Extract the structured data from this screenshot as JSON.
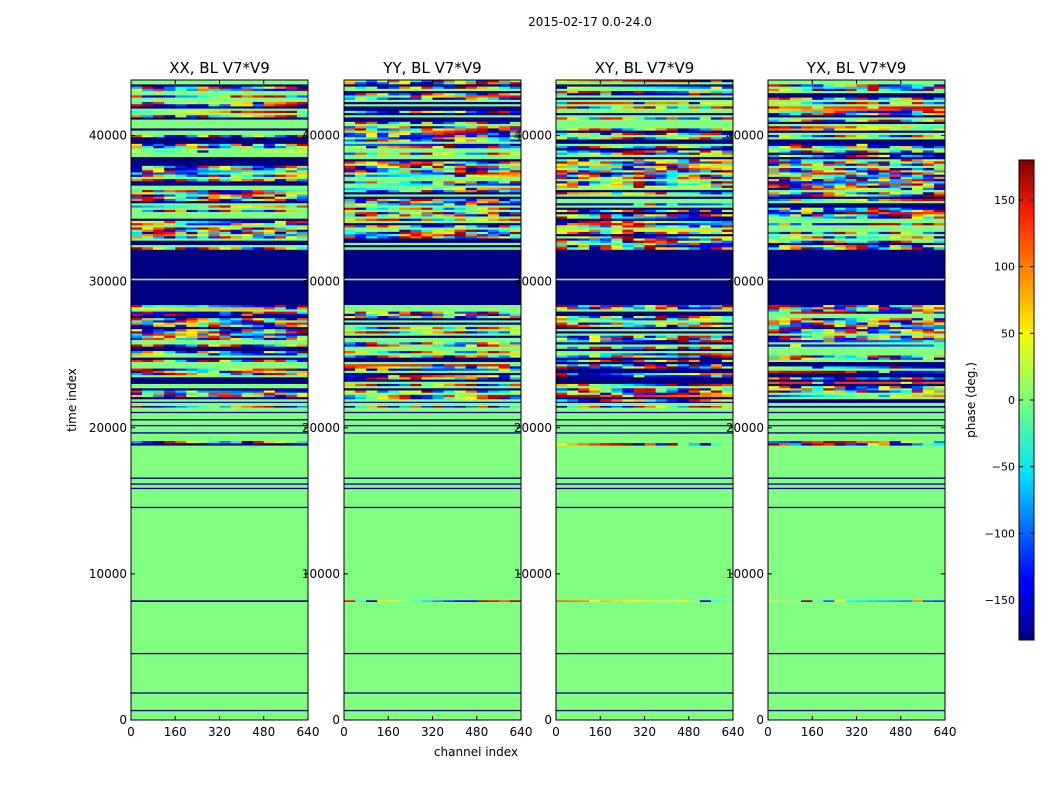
{
  "figure": {
    "suptitle": "2015-02-17 0.0-24.0",
    "xlabel": "channel index",
    "ylabel": "time index"
  },
  "chart_data": {
    "type": "heatmap",
    "title": "2015-02-17 0.0-24.0",
    "xlabel": "channel index",
    "ylabel": "time index",
    "xlim": [
      0,
      640
    ],
    "ylim": [
      0,
      43800
    ],
    "x_ticks": [
      0,
      160,
      320,
      480,
      640
    ],
    "y_ticks": [
      0,
      10000,
      20000,
      30000,
      40000
    ],
    "panels": [
      {
        "title": "XX, BL V7*V9"
      },
      {
        "title": "YY, BL V7*V9"
      },
      {
        "title": "XY, BL V7*V9"
      },
      {
        "title": "YX, BL V7*V9"
      }
    ],
    "colorbar": {
      "label": "phase (deg.)",
      "range": [
        -180,
        180
      ],
      "ticks": [
        -150,
        -100,
        -50,
        0,
        50,
        100,
        150
      ],
      "colormap": "jet"
    },
    "bands": [
      {
        "from": 0,
        "to": 600,
        "value": 0
      },
      {
        "from": 600,
        "to": 700,
        "value": -180
      },
      {
        "from": 700,
        "to": 1800,
        "value": 0
      },
      {
        "from": 1800,
        "to": 1900,
        "value": -180
      },
      {
        "from": 1900,
        "to": 4500,
        "value": 0
      },
      {
        "from": 4500,
        "to": 4600,
        "value": -180
      },
      {
        "from": 4600,
        "to": 8100,
        "value": 0
      },
      {
        "from": 8100,
        "to": 8200,
        "value": "noisy"
      },
      {
        "from": 8200,
        "to": 14500,
        "value": 0
      },
      {
        "from": 14500,
        "to": 14600,
        "value": -180
      },
      {
        "from": 14600,
        "to": 15800,
        "value": 0
      },
      {
        "from": 15800,
        "to": 15900,
        "value": -180
      },
      {
        "from": 15900,
        "to": 16100,
        "value": 0
      },
      {
        "from": 16100,
        "to": 16200,
        "value": -180
      },
      {
        "from": 16200,
        "to": 16500,
        "value": 0
      },
      {
        "from": 16500,
        "to": 16600,
        "value": -180
      },
      {
        "from": 16600,
        "to": 18800,
        "value": 0
      },
      {
        "from": 18800,
        "to": 19100,
        "value": "noisy"
      },
      {
        "from": 19100,
        "to": 19600,
        "value": 0
      },
      {
        "from": 19600,
        "to": 19700,
        "value": -180
      },
      {
        "from": 19700,
        "to": 20100,
        "value": 0
      },
      {
        "from": 20100,
        "to": 20200,
        "value": -180
      },
      {
        "from": 20200,
        "to": 20500,
        "value": 0
      },
      {
        "from": 20500,
        "to": 20600,
        "value": -180
      },
      {
        "from": 20600,
        "to": 21000,
        "value": 0
      },
      {
        "from": 21000,
        "to": 21100,
        "value": -180
      },
      {
        "from": 21100,
        "to": 21400,
        "value": 0
      },
      {
        "from": 21400,
        "to": 21500,
        "value": "noisy"
      },
      {
        "from": 21500,
        "to": 21700,
        "value": 0
      },
      {
        "from": 21700,
        "to": 21800,
        "value": -180
      },
      {
        "from": 21800,
        "to": 28400,
        "value": "noisy"
      },
      {
        "from": 28400,
        "to": 30100,
        "value": -180
      },
      {
        "from": 30100,
        "to": 30200,
        "value": 0
      },
      {
        "from": 30200,
        "to": 32200,
        "value": -180
      },
      {
        "from": 32200,
        "to": 43800,
        "value": "noisy"
      }
    ]
  }
}
